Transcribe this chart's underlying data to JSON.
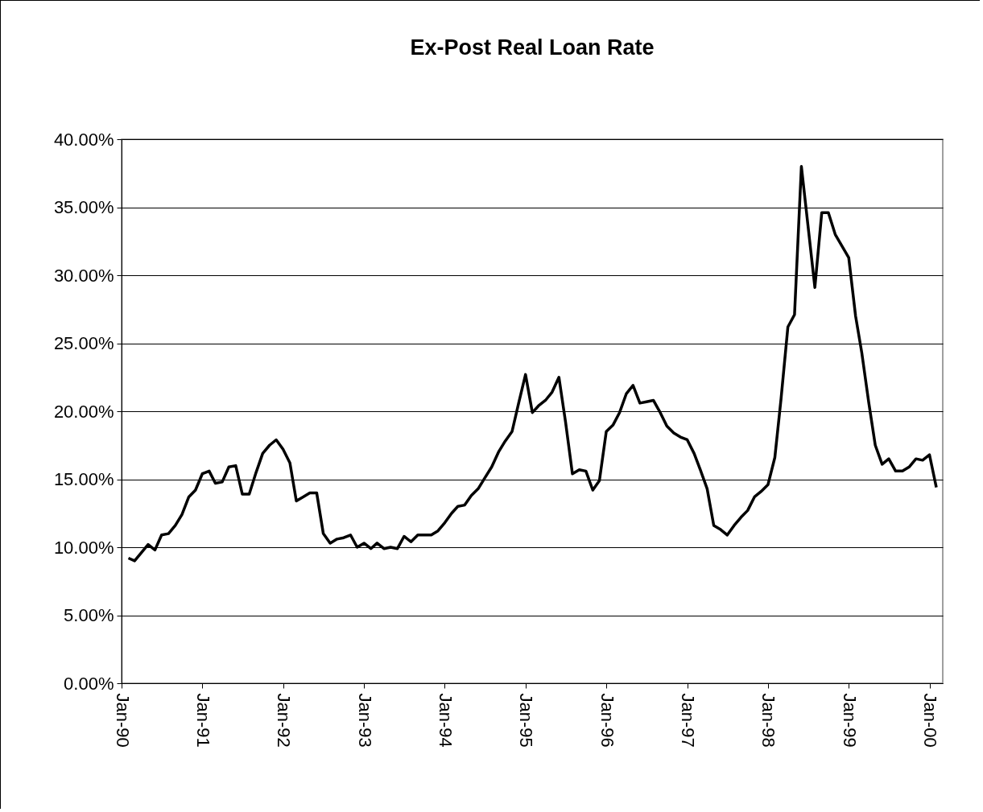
{
  "chart_data": {
    "type": "line",
    "title": "Ex-Post Real Loan Rate",
    "x": [
      "1990-02",
      "1990-03",
      "1990-05",
      "1990-06",
      "1990-07",
      "1990-08",
      "1990-09",
      "1990-10",
      "1990-11",
      "1990-12",
      "1991-01",
      "1991-02",
      "1991-03",
      "1991-04",
      "1991-05",
      "1991-06",
      "1991-07",
      "1991-08",
      "1991-09",
      "1991-10",
      "1991-11",
      "1991-12",
      "1992-01",
      "1992-02",
      "1992-03",
      "1992-04",
      "1992-05",
      "1992-06",
      "1992-07",
      "1992-08",
      "1992-09",
      "1992-10",
      "1992-11",
      "1992-12",
      "1993-01",
      "1993-02",
      "1993-03",
      "1993-04",
      "1993-05",
      "1993-06",
      "1993-07",
      "1993-08",
      "1993-09",
      "1993-10",
      "1993-11",
      "1993-12",
      "1994-01",
      "1994-02",
      "1994-03",
      "1994-04",
      "1994-05",
      "1994-06",
      "1994-07",
      "1994-08",
      "1994-09",
      "1994-10",
      "1994-11",
      "1994-12",
      "1995-01",
      "1995-02",
      "1995-03",
      "1995-04",
      "1995-05",
      "1995-06",
      "1995-07",
      "1995-08",
      "1995-09",
      "1995-10",
      "1995-11",
      "1995-12",
      "1996-01",
      "1996-02",
      "1996-03",
      "1996-04",
      "1996-05",
      "1996-06",
      "1996-07",
      "1996-08",
      "1996-09",
      "1996-10",
      "1996-11",
      "1996-12",
      "1997-01",
      "1997-02",
      "1997-03",
      "1997-04",
      "1997-05",
      "1997-06",
      "1997-07",
      "1997-08",
      "1997-09",
      "1997-10",
      "1997-11",
      "1997-12",
      "1998-01",
      "1998-02",
      "1998-03",
      "1998-04",
      "1998-05",
      "1998-06",
      "1998-08",
      "1998-09",
      "1998-10",
      "1998-11",
      "1999-01",
      "1999-02",
      "1999-03",
      "1999-04",
      "1999-05",
      "1999-06",
      "1999-07",
      "1999-08",
      "1999-09",
      "1999-10",
      "1999-11",
      "1999-12",
      "2000-01",
      "2000-02"
    ],
    "series": [
      {
        "color": "#000000",
        "values": [
          9.2,
          9.0,
          10.2,
          9.8,
          10.9,
          11.0,
          11.6,
          12.4,
          13.7,
          14.2,
          15.4,
          15.6,
          14.7,
          14.8,
          15.9,
          16.0,
          13.9,
          13.9,
          15.5,
          16.9,
          17.5,
          17.9,
          17.2,
          16.2,
          13.4,
          13.7,
          14.0,
          14.0,
          11.0,
          10.3,
          10.6,
          10.7,
          10.9,
          10.0,
          10.3,
          9.9,
          10.3,
          9.9,
          10.0,
          9.9,
          10.8,
          10.4,
          10.9,
          10.9,
          10.9,
          11.2,
          11.8,
          12.5,
          13.0,
          13.1,
          13.8,
          14.3,
          15.1,
          15.9,
          17.0,
          17.8,
          18.5,
          20.6,
          22.7,
          19.9,
          20.4,
          20.8,
          21.4,
          22.5,
          19.2,
          15.4,
          15.7,
          15.6,
          14.2,
          14.9,
          18.5,
          19.0,
          19.9,
          21.3,
          21.9,
          20.6,
          20.7,
          20.8,
          19.9,
          18.9,
          18.4,
          18.1,
          17.9,
          16.9,
          15.7,
          14.3,
          11.6,
          11.3,
          10.9,
          11.6,
          12.2,
          12.7,
          13.7,
          14.1,
          14.6,
          16.6,
          20.9,
          26.2,
          27.1,
          38.0,
          29.1,
          34.6,
          34.6,
          33.0,
          31.3,
          27.0,
          24.3,
          20.7,
          17.5,
          16.1,
          16.5,
          15.6,
          15.6,
          15.9,
          16.5,
          16.4,
          16.8,
          14.4
        ]
      }
    ],
    "xlim": [
      "1990-01",
      "2000-03"
    ],
    "xticks": [
      {
        "value": "1990-01",
        "label": "Jan-90"
      },
      {
        "value": "1991-01",
        "label": "Jan-91"
      },
      {
        "value": "1992-01",
        "label": "Jan-92"
      },
      {
        "value": "1993-01",
        "label": "Jan-93"
      },
      {
        "value": "1994-01",
        "label": "Jan-94"
      },
      {
        "value": "1995-01",
        "label": "Jan-95"
      },
      {
        "value": "1996-01",
        "label": "Jan-96"
      },
      {
        "value": "1997-01",
        "label": "Jan-97"
      },
      {
        "value": "1998-01",
        "label": "Jan-98"
      },
      {
        "value": "1999-01",
        "label": "Jan-99"
      },
      {
        "value": "2000-01",
        "label": "Jan-00"
      }
    ],
    "ylim": [
      0,
      40
    ],
    "yticks": [
      {
        "value": 0,
        "label": "0.00%"
      },
      {
        "value": 5,
        "label": "5.00%"
      },
      {
        "value": 10,
        "label": "10.00%"
      },
      {
        "value": 15,
        "label": "15.00%"
      },
      {
        "value": 20,
        "label": "20.00%"
      },
      {
        "value": 25,
        "label": "25.00%"
      },
      {
        "value": 30,
        "label": "30.00%"
      },
      {
        "value": 35,
        "label": "35.00%"
      },
      {
        "value": 40,
        "label": "40.00%"
      }
    ],
    "grid": "y",
    "marker": "none",
    "line_style": "solid"
  }
}
